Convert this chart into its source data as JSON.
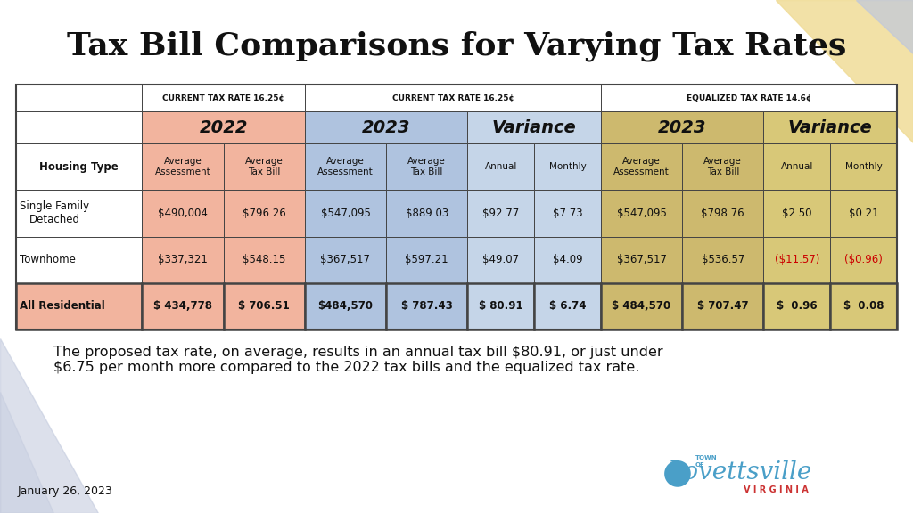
{
  "title": "Tax Bill Comparisons for Varying Tax Rates",
  "title_fontsize": 26,
  "footer_date": "January 26, 2023",
  "footer_text": "The proposed tax rate, on average, results in an annual tax bill $80.91, or just under\n$6.75 per month more compared to the 2022 tax bills and the equalized tax rate.",
  "footer_fontsize": 11.5,
  "header_row1_labels": [
    "CURRENT TAX RATE 16.25¢",
    "CURRENT TAX RATE 16.25¢",
    "EQUALIZED TAX RATE 14.6¢"
  ],
  "header_row2_labels": [
    "2022",
    "2023",
    "Variance",
    "2023",
    "Variance"
  ],
  "header_row3": [
    "Housing Type",
    "Average\nAssessment",
    "Average\nTax Bill",
    "Average\nAssessment",
    "Average\nTax Bill",
    "Annual",
    "Monthly",
    "Average\nAssessment",
    "Average\nTax Bill",
    "Annual",
    "Monthly"
  ],
  "rows": [
    [
      "Single Family\nDetached",
      "$490,004",
      "$796.26",
      "$547,095",
      "$889.03",
      "$92.77",
      "$7.73",
      "$547,095",
      "$798.76",
      "$2.50",
      "$0.21"
    ],
    [
      "Townhome",
      "$337,321",
      "$548.15",
      "$367,517",
      "$597.21",
      "$49.07",
      "$4.09",
      "$367,517",
      "$536.57",
      "($11.57)",
      "($0.96)"
    ],
    [
      "All Residential",
      "$ 434,778",
      "$ 706.51",
      "$484,570",
      "$ 787.43",
      "$ 80.91",
      "$ 6.74",
      "$ 484,570",
      "$ 707.47",
      "$  0.96",
      "$  0.08"
    ]
  ],
  "white": "#ffffff",
  "salmon": "#f2b49e",
  "blue_mid": "#afc3df",
  "blue_light": "#c5d5e8",
  "gold_mid": "#cdb96e",
  "gold_light": "#d8c878",
  "red_text": "#cc0000",
  "dark_text": "#111111",
  "border_color": "#444444",
  "bg_color": "#ffffff",
  "tri_yellow": "#f0dc98",
  "tri_blue": "#c0c8dc",
  "logo_blue": "#4a9fc8",
  "logo_red": "#cc3333"
}
